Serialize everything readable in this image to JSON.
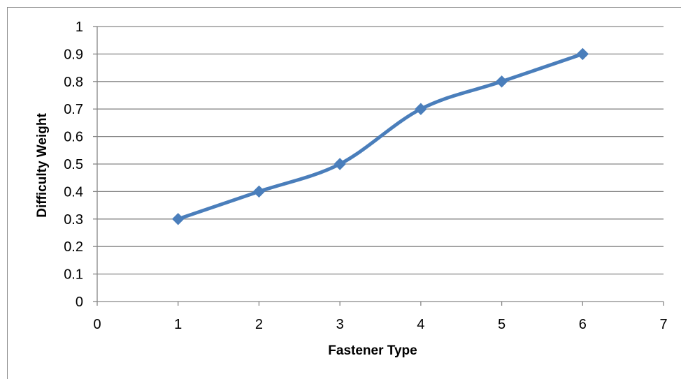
{
  "chart_data": {
    "type": "line",
    "title": "",
    "xlabel": "Fastener Type",
    "ylabel": "Difficulty Weight",
    "xlim": [
      0,
      7
    ],
    "ylim": [
      0,
      1
    ],
    "x_ticks": [
      "0",
      "1",
      "2",
      "3",
      "4",
      "5",
      "6",
      "7"
    ],
    "y_ticks": [
      "0",
      "0.1",
      "0.2",
      "0.3",
      "0.4",
      "0.5",
      "0.6",
      "0.7",
      "0.8",
      "0.9",
      "1"
    ],
    "grid": "horizontal",
    "legend": "none",
    "series": [
      {
        "x": [
          1,
          2,
          3,
          4,
          5,
          6
        ],
        "values": [
          0.3,
          0.4,
          0.5,
          0.7,
          0.8,
          0.9
        ],
        "color": "#4a7ebb",
        "marker": "diamond",
        "smooth": true
      }
    ]
  }
}
